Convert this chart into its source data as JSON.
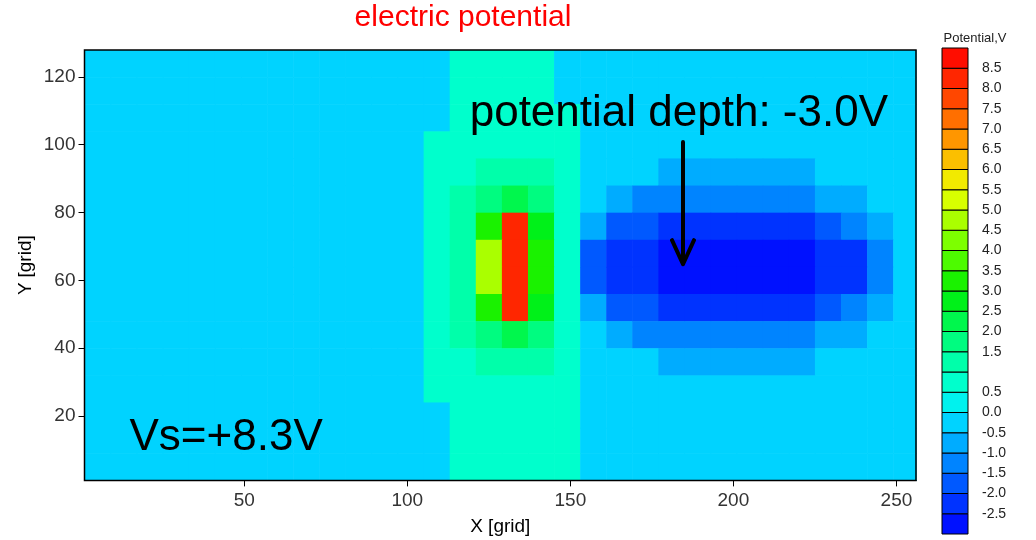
{
  "chart_data": {
    "type": "heatmap",
    "title": "electric potential",
    "xlabel": "X [grid]",
    "ylabel": "Y [grid]",
    "clabel": "Potential,V",
    "xlim": [
      1,
      256
    ],
    "xticks": [
      50,
      100,
      150,
      200,
      250
    ],
    "ylim": [
      1,
      128
    ],
    "yticks": [
      20,
      40,
      60,
      80,
      100,
      120
    ],
    "clim": [
      -3,
      9
    ],
    "cticks": [
      8.5,
      {
        "value": 8,
        "label": "8.0"
      },
      7.5,
      {
        "value": 7,
        "label": "7.0"
      },
      6.5,
      {
        "value": 6,
        "label": "6.0"
      },
      5.5,
      {
        "value": 5,
        "label": "5.0"
      },
      4.5,
      {
        "value": 4,
        "label": "4.0"
      },
      3.5,
      {
        "value": 3,
        "label": "3.0"
      },
      2.5,
      {
        "value": 2,
        "label": "2.0"
      },
      1.5,
      0.5,
      {
        "value": 0,
        "label": "0.0"
      },
      -0.5,
      {
        "value": -1,
        "label": "-1.0"
      },
      -1.5,
      {
        "value": -2,
        "label": "-2.0"
      },
      -2.5
    ],
    "x": [
      5,
      13,
      21,
      29,
      37,
      45,
      53,
      61,
      69,
      77,
      85,
      93,
      101,
      109,
      117,
      125,
      133,
      141,
      149,
      157,
      165,
      173,
      181,
      189,
      197,
      205,
      213,
      221,
      229,
      237,
      245,
      253
    ],
    "y": [
      124,
      116,
      108,
      100,
      92,
      84,
      76,
      68,
      60,
      52,
      44,
      36,
      28,
      20,
      13,
      5
    ],
    "cells": [
      [
        -0.2,
        -0.2,
        -0.2,
        -0.2,
        -0.2,
        -0.2,
        -0.2,
        -0.2,
        -0.2,
        -0.2,
        -0.2,
        -0.2,
        -0.2,
        -0.2,
        0.7,
        0.7,
        0.7,
        0.7,
        -0.2,
        -0.2,
        -0.2,
        -0.2,
        -0.2,
        -0.2,
        -0.2,
        -0.2,
        -0.2,
        -0.2,
        -0.2,
        -0.2,
        -0.2,
        -0.2
      ],
      [
        -0.2,
        -0.2,
        -0.2,
        -0.2,
        -0.2,
        -0.2,
        -0.2,
        -0.2,
        -0.2,
        -0.2,
        -0.2,
        -0.2,
        -0.2,
        -0.2,
        0.7,
        0.7,
        0.7,
        0.7,
        -0.2,
        -0.2,
        -0.2,
        -0.2,
        -0.2,
        -0.2,
        -0.2,
        -0.2,
        -0.2,
        -0.2,
        -0.2,
        -0.2,
        -0.2,
        -0.2
      ],
      [
        -0.2,
        -0.2,
        -0.2,
        -0.2,
        -0.2,
        -0.2,
        -0.2,
        -0.2,
        -0.2,
        -0.2,
        -0.2,
        -0.2,
        -0.2,
        -0.2,
        0.7,
        0.7,
        0.7,
        0.7,
        0.7,
        -0.2,
        -0.2,
        -0.2,
        -0.2,
        -0.2,
        -0.2,
        -0.2,
        -0.2,
        -0.2,
        -0.2,
        -0.2,
        -0.2,
        -0.2
      ],
      [
        -0.2,
        -0.2,
        -0.2,
        -0.2,
        -0.2,
        -0.2,
        -0.2,
        -0.2,
        -0.2,
        -0.2,
        -0.2,
        -0.2,
        -0.2,
        0.7,
        0.7,
        0.7,
        0.7,
        0.7,
        0.7,
        -0.2,
        -0.2,
        -0.2,
        -0.2,
        -0.2,
        -0.2,
        -0.2,
        -0.2,
        -0.2,
        -0.2,
        -0.2,
        -0.2,
        -0.2
      ],
      [
        -0.2,
        -0.2,
        -0.2,
        -0.2,
        -0.2,
        -0.2,
        -0.2,
        -0.2,
        -0.2,
        -0.2,
        -0.2,
        -0.2,
        -0.2,
        0.7,
        0.7,
        1.2,
        1.2,
        1.2,
        0.7,
        -0.2,
        -0.2,
        -0.2,
        -0.7,
        -0.7,
        -0.7,
        -0.7,
        -0.7,
        -0.7,
        -0.2,
        -0.2,
        -0.2,
        -0.2
      ],
      [
        -0.2,
        -0.2,
        -0.2,
        -0.2,
        -0.2,
        -0.2,
        -0.2,
        -0.2,
        -0.2,
        -0.2,
        -0.2,
        -0.2,
        -0.2,
        0.7,
        1.2,
        1.7,
        2.2,
        1.7,
        0.7,
        -0.2,
        -0.7,
        -1.2,
        -1.2,
        -1.2,
        -1.2,
        -1.2,
        -1.2,
        -1.2,
        -0.7,
        -0.7,
        -0.2,
        -0.2
      ],
      [
        -0.2,
        -0.2,
        -0.2,
        -0.2,
        -0.2,
        -0.2,
        -0.2,
        -0.2,
        -0.2,
        -0.2,
        -0.2,
        -0.2,
        -0.2,
        0.7,
        1.2,
        3.2,
        8.3,
        2.7,
        0.7,
        -0.7,
        -1.7,
        -1.7,
        -2.2,
        -2.2,
        -2.2,
        -2.2,
        -2.2,
        -2.2,
        -1.7,
        -1.2,
        -0.7,
        -0.2
      ],
      [
        -0.2,
        -0.2,
        -0.2,
        -0.2,
        -0.2,
        -0.2,
        -0.2,
        -0.2,
        -0.2,
        -0.2,
        -0.2,
        -0.2,
        -0.2,
        0.7,
        1.2,
        4.7,
        8.3,
        3.2,
        0.7,
        -1.7,
        -2.2,
        -2.2,
        -2.7,
        -2.7,
        -2.7,
        -2.7,
        -2.7,
        -2.7,
        -2.2,
        -2.2,
        -1.2,
        -0.2
      ],
      [
        -0.2,
        -0.2,
        -0.2,
        -0.2,
        -0.2,
        -0.2,
        -0.2,
        -0.2,
        -0.2,
        -0.2,
        -0.2,
        -0.2,
        -0.2,
        0.7,
        1.2,
        4.7,
        8.3,
        3.2,
        0.7,
        -1.7,
        -2.2,
        -2.2,
        -2.7,
        -2.7,
        -2.7,
        -2.7,
        -2.7,
        -2.7,
        -2.2,
        -2.2,
        -1.2,
        -0.2
      ],
      [
        -0.2,
        -0.2,
        -0.2,
        -0.2,
        -0.2,
        -0.2,
        -0.2,
        -0.2,
        -0.2,
        -0.2,
        -0.2,
        -0.2,
        -0.2,
        0.7,
        1.2,
        3.2,
        8.3,
        2.7,
        0.7,
        -0.7,
        -1.7,
        -1.7,
        -2.2,
        -2.2,
        -2.2,
        -2.2,
        -2.2,
        -2.2,
        -1.7,
        -1.2,
        -0.7,
        -0.2
      ],
      [
        -0.2,
        -0.2,
        -0.2,
        -0.2,
        -0.2,
        -0.2,
        -0.2,
        -0.2,
        -0.2,
        -0.2,
        -0.2,
        -0.2,
        -0.2,
        0.7,
        1.2,
        1.7,
        2.2,
        1.7,
        0.7,
        -0.2,
        -0.7,
        -1.2,
        -1.2,
        -1.2,
        -1.2,
        -1.2,
        -1.2,
        -1.2,
        -0.7,
        -0.7,
        -0.2,
        -0.2
      ],
      [
        -0.2,
        -0.2,
        -0.2,
        -0.2,
        -0.2,
        -0.2,
        -0.2,
        -0.2,
        -0.2,
        -0.2,
        -0.2,
        -0.2,
        -0.2,
        0.7,
        0.7,
        1.2,
        1.2,
        1.2,
        0.7,
        -0.2,
        -0.2,
        -0.2,
        -0.7,
        -0.7,
        -0.7,
        -0.7,
        -0.7,
        -0.7,
        -0.2,
        -0.2,
        -0.2,
        -0.2
      ],
      [
        -0.2,
        -0.2,
        -0.2,
        -0.2,
        -0.2,
        -0.2,
        -0.2,
        -0.2,
        -0.2,
        -0.2,
        -0.2,
        -0.2,
        -0.2,
        0.7,
        0.7,
        0.7,
        0.7,
        0.7,
        0.7,
        -0.2,
        -0.2,
        -0.2,
        -0.2,
        -0.2,
        -0.2,
        -0.2,
        -0.2,
        -0.2,
        -0.2,
        -0.2,
        -0.2,
        -0.2
      ],
      [
        -0.2,
        -0.2,
        -0.2,
        -0.2,
        -0.2,
        -0.2,
        -0.2,
        -0.2,
        -0.2,
        -0.2,
        -0.2,
        -0.2,
        -0.2,
        -0.2,
        0.7,
        0.7,
        0.7,
        0.7,
        0.7,
        -0.2,
        -0.2,
        -0.2,
        -0.2,
        -0.2,
        -0.2,
        -0.2,
        -0.2,
        -0.2,
        -0.2,
        -0.2,
        -0.2,
        -0.2
      ],
      [
        -0.2,
        -0.2,
        -0.2,
        -0.2,
        -0.2,
        -0.2,
        -0.2,
        -0.2,
        -0.2,
        -0.2,
        -0.2,
        -0.2,
        -0.2,
        -0.2,
        0.7,
        0.7,
        0.7,
        0.7,
        0.7,
        -0.2,
        -0.2,
        -0.2,
        -0.2,
        -0.2,
        -0.2,
        -0.2,
        -0.2,
        -0.2,
        -0.2,
        -0.2,
        -0.2,
        -0.2
      ],
      [
        -0.2,
        -0.2,
        -0.2,
        -0.2,
        -0.2,
        -0.2,
        -0.2,
        -0.2,
        -0.2,
        -0.2,
        -0.2,
        -0.2,
        -0.2,
        -0.2,
        0.7,
        0.7,
        0.7,
        0.7,
        0.7,
        -0.2,
        -0.2,
        -0.2,
        -0.2,
        -0.2,
        -0.2,
        -0.2,
        -0.2,
        -0.2,
        -0.2,
        -0.2,
        -0.2,
        -0.2
      ]
    ],
    "annotations": [
      "potential depth: -3.0V",
      "Vs=+8.3V"
    ]
  }
}
